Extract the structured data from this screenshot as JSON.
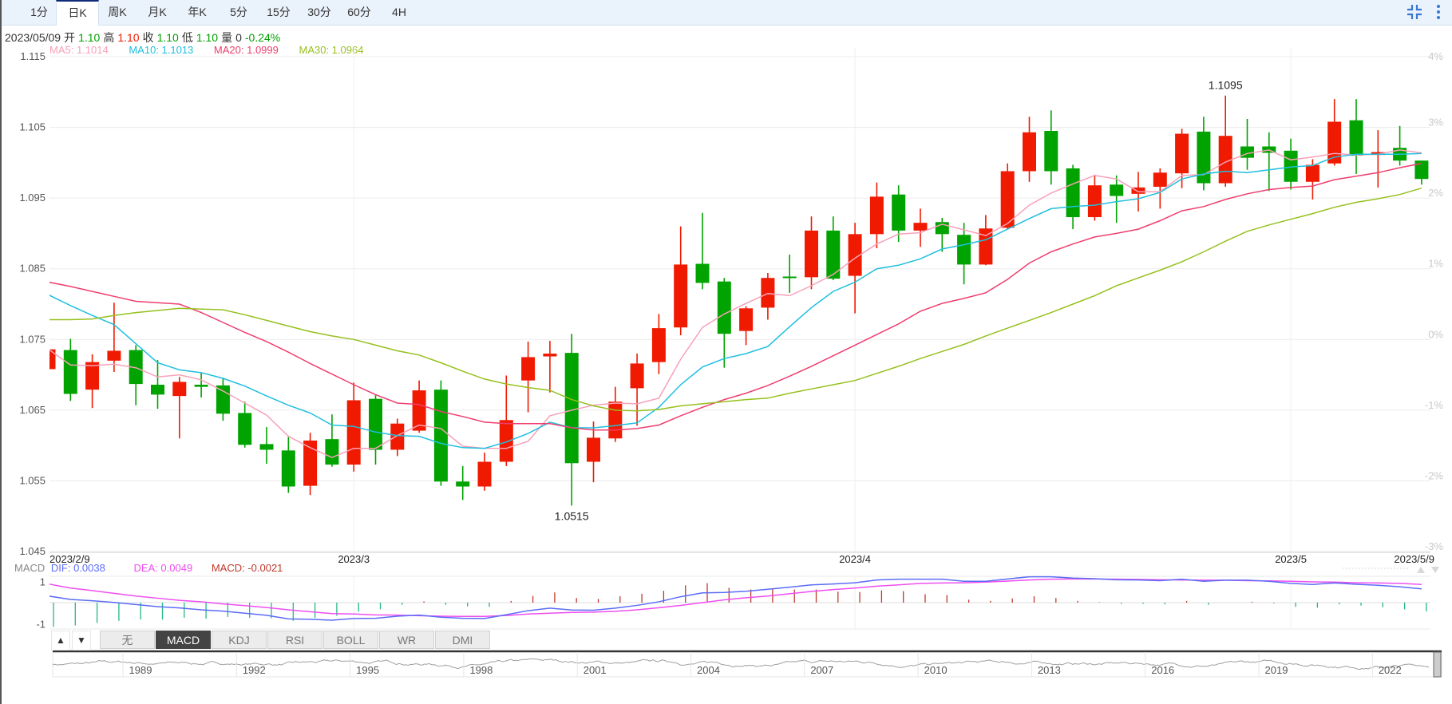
{
  "tabs": {
    "items": [
      {
        "label": "1分"
      },
      {
        "label": "日K"
      },
      {
        "label": "周K"
      },
      {
        "label": "月K"
      },
      {
        "label": "年K"
      },
      {
        "label": "5分"
      },
      {
        "label": "15分"
      },
      {
        "label": "30分"
      },
      {
        "label": "60分"
      },
      {
        "label": "4H"
      }
    ],
    "active_index": 1
  },
  "toolbar_icons": [
    "collapse-icon",
    "more-vertical-icon"
  ],
  "info": {
    "date": "2023/05/09",
    "open_label": "开",
    "open": "1.10",
    "high_label": "高",
    "high": "1.10",
    "close_label": "收",
    "close": "1.10",
    "low_label": "低",
    "low": "1.10",
    "volume_label": "量",
    "volume": "0",
    "change": "-0.24%"
  },
  "ma_legend": {
    "ma5": "MA5: 1.1014",
    "ma10": "MA10: 1.1013",
    "ma20": "MA20: 1.0999",
    "ma30": "MA30: 1.0964"
  },
  "colors": {
    "up": "#f01a00",
    "down": "#00a300",
    "ma5": "#f7a1b9",
    "ma10": "#1fbfdf",
    "ma20": "#ef3e6e",
    "ma30": "#96c01e",
    "dif": "#5b6cf5",
    "dea": "#ee4ef0",
    "macd_label": "#c0392b",
    "hist_up": "#c0392b",
    "hist_down": "#26b58a"
  },
  "chart_data": [
    {
      "type": "candlestick",
      "ylim": [
        1.045,
        1.115
      ],
      "y_ticks": [
        "1.115",
        "1.105",
        "1.095",
        "1.085",
        "1.075",
        "1.065",
        "1.055",
        "1.045"
      ],
      "y_right_ticks": [
        "4%",
        "3%",
        "2%",
        "1%",
        "0%",
        "-1%",
        "-2%",
        "-3%"
      ],
      "x_ticks": [
        {
          "index": 0,
          "label": "2023/2/9"
        },
        {
          "index": 14,
          "label": "2023/3"
        },
        {
          "index": 37,
          "label": "2023/4"
        },
        {
          "index": 57,
          "label": "2023/5"
        },
        {
          "index": 63,
          "label": "2023/5/9"
        }
      ],
      "grid": true,
      "annotations": [
        {
          "index": 54,
          "label": "1.1095",
          "position": "above"
        },
        {
          "index": 24,
          "label": "1.0515",
          "position": "below"
        }
      ],
      "ohlc": [
        [
          1.0708,
          1.0738,
          1.0706,
          1.0736
        ],
        [
          1.0735,
          1.0751,
          1.0663,
          1.0673
        ],
        [
          1.0679,
          1.0729,
          1.0653,
          1.0718
        ],
        [
          1.072,
          1.0802,
          1.0704,
          1.0734
        ],
        [
          1.0735,
          1.0742,
          1.0657,
          1.0687
        ],
        [
          1.0686,
          1.0721,
          1.0652,
          1.0672
        ],
        [
          1.067,
          1.0697,
          1.061,
          1.069
        ],
        [
          1.0686,
          1.0703,
          1.0668,
          1.0683
        ],
        [
          1.0685,
          1.0696,
          1.0635,
          1.0645
        ],
        [
          1.0646,
          1.0662,
          1.0597,
          1.0601
        ],
        [
          1.0602,
          1.0626,
          1.0574,
          1.0594
        ],
        [
          1.0593,
          1.0612,
          1.0533,
          1.0542
        ],
        [
          1.0543,
          1.0618,
          1.053,
          1.0607
        ],
        [
          1.0609,
          1.0644,
          1.057,
          1.0573
        ],
        [
          1.0573,
          1.0689,
          1.0563,
          1.0664
        ],
        [
          1.0666,
          1.0671,
          1.0573,
          1.0594
        ],
        [
          1.0594,
          1.0638,
          1.0585,
          1.0631
        ],
        [
          1.0621,
          1.0692,
          1.0618,
          1.0678
        ],
        [
          1.0679,
          1.0692,
          1.0543,
          1.0549
        ],
        [
          1.0549,
          1.0571,
          1.0523,
          1.0542
        ],
        [
          1.0542,
          1.059,
          1.0536,
          1.0577
        ],
        [
          1.0577,
          1.0699,
          1.0571,
          1.0636
        ],
        [
          1.0692,
          1.0747,
          1.0647,
          1.0725
        ],
        [
          1.0726,
          1.0748,
          1.0675,
          1.073
        ],
        [
          1.0731,
          1.0758,
          1.0515,
          1.0575
        ],
        [
          1.0577,
          1.0634,
          1.0548,
          1.0611
        ],
        [
          1.061,
          1.0683,
          1.0605,
          1.0662
        ],
        [
          1.0681,
          1.073,
          1.0628,
          1.0716
        ],
        [
          1.0718,
          1.0786,
          1.0701,
          1.0766
        ],
        [
          1.0767,
          1.091,
          1.0756,
          1.0856
        ],
        [
          1.0857,
          1.0929,
          1.0821,
          1.083
        ],
        [
          1.0832,
          1.0837,
          1.071,
          1.0758
        ],
        [
          1.0762,
          1.0797,
          1.0742,
          1.0794
        ],
        [
          1.0795,
          1.0844,
          1.0778,
          1.0837
        ],
        [
          1.0839,
          1.087,
          1.0816,
          1.0838
        ],
        [
          1.0838,
          1.0924,
          1.0821,
          1.0904
        ],
        [
          1.0904,
          1.0924,
          1.0834,
          1.0836
        ],
        [
          1.084,
          1.0915,
          1.0787,
          1.0899
        ],
        [
          1.0899,
          1.0972,
          1.0879,
          1.0952
        ],
        [
          1.0955,
          1.0968,
          1.0888,
          1.0904
        ],
        [
          1.0904,
          1.0935,
          1.0881,
          1.0915
        ],
        [
          1.0916,
          1.0922,
          1.0874,
          1.0899
        ],
        [
          1.0898,
          1.0915,
          1.0828,
          1.0856
        ],
        [
          1.0856,
          1.0926,
          1.0855,
          1.0907
        ],
        [
          1.0908,
          1.0999,
          1.0906,
          1.0988
        ],
        [
          1.0988,
          1.1065,
          1.0973,
          1.1043
        ],
        [
          1.1045,
          1.1074,
          1.0969,
          1.0988
        ],
        [
          1.0992,
          1.0997,
          1.0906,
          1.0923
        ],
        [
          1.0923,
          1.0983,
          1.0918,
          1.0968
        ],
        [
          1.0969,
          1.0982,
          1.0915,
          1.0953
        ],
        [
          1.0956,
          1.0987,
          1.0931,
          1.0965
        ],
        [
          1.0966,
          1.0992,
          1.0935,
          1.0986
        ],
        [
          1.0985,
          1.1048,
          1.0964,
          1.1041
        ],
        [
          1.1044,
          1.1065,
          1.0961,
          1.0971
        ],
        [
          1.0971,
          1.1095,
          1.0966,
          1.1038
        ],
        [
          1.1023,
          1.1062,
          1.099,
          1.1007
        ],
        [
          1.1023,
          1.1043,
          1.096,
          1.1014
        ],
        [
          1.1017,
          1.1034,
          1.0962,
          1.0973
        ],
        [
          1.0973,
          1.1005,
          1.0948,
          1.0997
        ],
        [
          1.0999,
          1.109,
          1.0996,
          1.1058
        ],
        [
          1.106,
          1.109,
          1.0984,
          1.101
        ],
        [
          1.1011,
          1.1046,
          1.0965,
          1.1015
        ],
        [
          1.1021,
          1.1052,
          1.0996,
          1.1003
        ],
        [
          1.1003,
          1.1003,
          1.0969,
          1.0977
        ]
      ],
      "series": [
        {
          "name": "MA5",
          "values": [
            1.0736,
            1.0714,
            1.0713,
            1.0715,
            1.071,
            1.0697,
            1.07,
            1.0693,
            1.0677,
            1.066,
            1.0643,
            1.0613,
            1.0597,
            1.0583,
            1.0596,
            1.0596,
            1.0614,
            1.0629,
            1.0624,
            1.0599,
            1.0596,
            1.0596,
            1.0606,
            1.0642,
            1.065,
            1.0657,
            1.066,
            1.0659,
            1.0667,
            1.0722,
            1.0767,
            1.0786,
            1.0801,
            1.0815,
            1.0812,
            1.0826,
            1.0842,
            1.0865,
            1.0885,
            1.0899,
            1.0901,
            1.0913,
            1.0905,
            1.0897,
            1.0914,
            1.094,
            1.0957,
            1.097,
            1.0982,
            1.0977,
            1.0959,
            1.0959,
            1.0982,
            1.0983,
            1.1001,
            1.1013,
            1.1018,
            1.1004,
            1.1008,
            1.1013,
            1.1011,
            1.1012,
            1.1018,
            1.1014
          ]
        },
        {
          "name": "MA10",
          "values": [
            1.0813,
            1.0798,
            1.0784,
            1.0771,
            1.0744,
            1.0717,
            1.0707,
            1.0703,
            1.0695,
            1.0684,
            1.067,
            1.0657,
            1.0646,
            1.0629,
            1.0627,
            1.0619,
            1.0614,
            1.0613,
            1.0603,
            1.0597,
            1.0596,
            1.0605,
            1.0617,
            1.0633,
            1.0625,
            1.0625,
            1.0628,
            1.0632,
            1.0654,
            1.0686,
            1.0711,
            1.0723,
            1.073,
            1.074,
            1.0768,
            1.0795,
            1.0818,
            1.0831,
            1.085,
            1.0855,
            1.0864,
            1.0878,
            1.0884,
            1.0891,
            1.0906,
            1.0921,
            1.0935,
            1.0938,
            1.094,
            1.0945,
            1.0949,
            1.0958,
            1.0977,
            1.0984,
            1.0988,
            1.0986,
            1.099,
            1.0994,
            1.0996,
            1.1008,
            1.1012,
            1.1012,
            1.1012,
            1.1013
          ]
        },
        {
          "name": "MA20",
          "values": [
            1.0831,
            1.0825,
            1.0818,
            1.0811,
            1.0804,
            1.0802,
            1.08,
            1.0788,
            1.0774,
            1.076,
            1.0747,
            1.0732,
            1.0716,
            1.0701,
            1.0686,
            1.0672,
            1.066,
            1.0658,
            1.0648,
            1.0641,
            1.0633,
            1.0631,
            1.0631,
            1.0631,
            1.0625,
            1.0622,
            1.0622,
            1.0624,
            1.0629,
            1.0642,
            1.0654,
            1.0665,
            1.0674,
            1.0685,
            1.0698,
            1.0712,
            1.0727,
            1.0742,
            1.0757,
            1.0772,
            1.079,
            1.0801,
            1.0808,
            1.0816,
            1.0835,
            1.0858,
            1.0874,
            1.0885,
            1.0895,
            1.09,
            1.0906,
            1.0918,
            1.0932,
            1.0938,
            1.0948,
            1.0956,
            1.0962,
            1.0965,
            1.0967,
            1.0976,
            1.0981,
            1.0986,
            1.0993,
            1.0999
          ]
        },
        {
          "name": "MA30",
          "values": [
            1.0778,
            1.0778,
            1.0779,
            1.0784,
            1.0788,
            1.0791,
            1.0794,
            1.0793,
            1.0792,
            1.0785,
            1.0777,
            1.0769,
            1.0761,
            1.0755,
            1.075,
            1.0742,
            1.0734,
            1.0728,
            1.0717,
            1.0705,
            1.0694,
            1.0687,
            1.0682,
            1.0678,
            1.0665,
            1.0656,
            1.065,
            1.0649,
            1.0651,
            1.0656,
            1.0659,
            1.0662,
            1.0665,
            1.0667,
            1.0674,
            1.068,
            1.0686,
            1.0692,
            1.0702,
            1.0712,
            1.0723,
            1.0733,
            1.0743,
            1.0755,
            1.0766,
            1.0777,
            1.0788,
            1.08,
            1.0812,
            1.0826,
            1.0837,
            1.0848,
            1.086,
            1.0874,
            1.0889,
            1.0903,
            1.0912,
            1.092,
            1.0928,
            1.0937,
            1.0944,
            1.0949,
            1.0955,
            1.0964
          ]
        }
      ]
    },
    {
      "type": "macd",
      "title": "MACD",
      "legend": {
        "dif": "DIF: 0.0038",
        "dea": "DEA: 0.0049",
        "macd": "MACD: -0.0021"
      },
      "y_ticks": [
        "1",
        "-1"
      ],
      "ylim": [
        -1.25,
        1.25
      ],
      "dif": [
        0.31,
        0.15,
        0.09,
        0.01,
        -0.09,
        -0.19,
        -0.25,
        -0.34,
        -0.4,
        -0.5,
        -0.6,
        -0.77,
        -0.79,
        -0.83,
        -0.75,
        -0.74,
        -0.64,
        -0.59,
        -0.69,
        -0.74,
        -0.75,
        -0.57,
        -0.38,
        -0.26,
        -0.35,
        -0.36,
        -0.26,
        -0.13,
        0.04,
        0.28,
        0.46,
        0.48,
        0.54,
        0.63,
        0.73,
        0.84,
        0.88,
        0.94,
        1.07,
        1.11,
        1.11,
        1.11,
        1.01,
        1.01,
        1.12,
        1.22,
        1.22,
        1.16,
        1.13,
        1.08,
        1.07,
        1.04,
        1.11,
        1.01,
        1.06,
        1.06,
        1.01,
        0.91,
        0.86,
        0.93,
        0.87,
        0.82,
        0.75,
        0.65
      ],
      "dea": [
        0.88,
        0.69,
        0.57,
        0.44,
        0.31,
        0.21,
        0.11,
        0.04,
        -0.06,
        -0.14,
        -0.23,
        -0.34,
        -0.43,
        -0.52,
        -0.54,
        -0.58,
        -0.59,
        -0.62,
        -0.64,
        -0.65,
        -0.65,
        -0.61,
        -0.54,
        -0.5,
        -0.46,
        -0.45,
        -0.41,
        -0.34,
        -0.24,
        -0.13,
        0.0,
        0.13,
        0.23,
        0.31,
        0.42,
        0.53,
        0.62,
        0.69,
        0.78,
        0.84,
        0.91,
        0.93,
        0.94,
        0.97,
        1.02,
        1.07,
        1.11,
        1.12,
        1.12,
        1.11,
        1.1,
        1.08,
        1.07,
        1.06,
        1.06,
        1.04,
        1.03,
        1.01,
        0.98,
        0.97,
        0.94,
        0.93,
        0.91,
        0.86
      ]
    }
  ],
  "indicator_tabs": {
    "up_label": "▲",
    "down_label": "▼",
    "items": [
      {
        "label": "无"
      },
      {
        "label": "MACD"
      },
      {
        "label": "KDJ"
      },
      {
        "label": "RSI"
      },
      {
        "label": "BOLL"
      },
      {
        "label": "WR"
      },
      {
        "label": "DMI"
      }
    ],
    "active_index": 1
  },
  "navigator": {
    "years": [
      "1989",
      "1992",
      "1995",
      "1998",
      "2001",
      "2004",
      "2007",
      "2010",
      "2013",
      "2016",
      "2019",
      "2022"
    ]
  }
}
